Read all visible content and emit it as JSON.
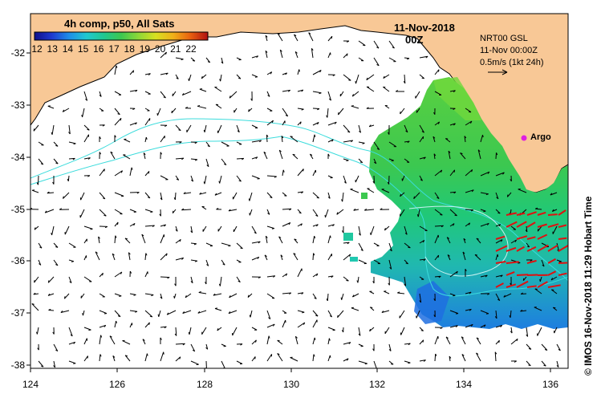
{
  "map": {
    "legend": {
      "title": "4h comp, p50, All Sats",
      "ticks": [
        "12",
        "13",
        "14",
        "15",
        "16",
        "17",
        "18",
        "19",
        "20",
        "21",
        "22"
      ],
      "colors": [
        "#1a1a9e",
        "#1e50d8",
        "#1ea0e8",
        "#20c8c0",
        "#20c878",
        "#5ad040",
        "#a8e030",
        "#e8e020",
        "#f0a018",
        "#e05010",
        "#b01010"
      ]
    },
    "date": "11-Nov-2018",
    "time": "00Z",
    "product_info": {
      "line1": "NRT00 GSL",
      "line2": "11-Nov 00:00Z",
      "line3": "0.5m/s (1kt 24h)"
    },
    "argo_label": "Argo",
    "credit": "© IMOS 16-Nov-2018 11:29 Hobart Time",
    "x_ticks": [
      "124",
      "126",
      "128",
      "130",
      "132",
      "134",
      "136"
    ],
    "y_ticks": [
      "-32",
      "-33",
      "-34",
      "-35",
      "-36",
      "-37",
      "-38"
    ],
    "colors": {
      "land": "#f8c896",
      "coast": "#000000",
      "contour": "#3cdcdc",
      "arrows": "#000000",
      "highlight_arrows": "#e01010",
      "argo": "#e020e0"
    }
  }
}
